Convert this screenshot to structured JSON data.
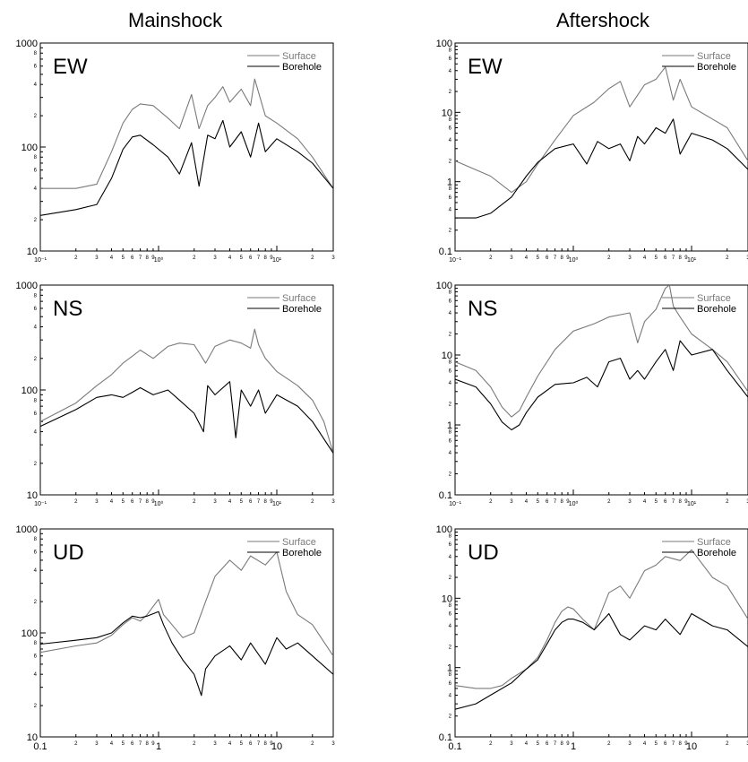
{
  "columns": [
    {
      "title": "Mainshock"
    },
    {
      "title": "Aftershock"
    }
  ],
  "colors": {
    "surface": "#7a7a7a",
    "borehole": "#000000"
  },
  "legend": {
    "surface": "Surface",
    "borehole": "Borehole"
  },
  "chart_data": [
    {
      "type": "line",
      "column": "Mainshock",
      "component": "EW",
      "xscale": "log",
      "yscale": "log",
      "xlim": [
        0.1,
        30
      ],
      "ylim": [
        10,
        1000
      ],
      "grid": false,
      "legend_position": "top-right",
      "x_ticklabels": [
        "10⁻¹",
        "10⁰",
        "10¹"
      ],
      "y_ticklabels": [
        "1000",
        "100",
        "10"
      ],
      "series": [
        {
          "name": "Surface",
          "x": [
            0.1,
            0.2,
            0.3,
            0.4,
            0.5,
            0.6,
            0.7,
            0.9,
            1.2,
            1.5,
            1.9,
            2.2,
            2.6,
            3.0,
            3.5,
            4.0,
            5.0,
            6.0,
            6.5,
            8.0,
            10,
            15,
            20,
            30
          ],
          "y": [
            40,
            40,
            44,
            90,
            170,
            230,
            260,
            250,
            190,
            150,
            320,
            150,
            250,
            300,
            380,
            270,
            360,
            250,
            450,
            200,
            170,
            120,
            80,
            40
          ]
        },
        {
          "name": "Borehole",
          "x": [
            0.1,
            0.2,
            0.3,
            0.4,
            0.5,
            0.6,
            0.7,
            0.9,
            1.2,
            1.5,
            1.9,
            2.2,
            2.6,
            3.0,
            3.5,
            4.0,
            5.0,
            6.0,
            7.0,
            8.0,
            10,
            15,
            20,
            30
          ],
          "y": [
            22,
            25,
            28,
            50,
            95,
            125,
            130,
            105,
            80,
            55,
            110,
            42,
            130,
            120,
            180,
            100,
            140,
            80,
            170,
            90,
            120,
            90,
            70,
            40
          ]
        }
      ]
    },
    {
      "type": "line",
      "column": "Aftershock",
      "component": "EW",
      "xscale": "log",
      "yscale": "log",
      "xlim": [
        0.1,
        30
      ],
      "ylim": [
        0.1,
        100
      ],
      "grid": false,
      "legend_position": "top-right",
      "x_ticklabels": [
        "10⁻¹",
        "10⁰",
        "10¹"
      ],
      "y_ticklabels": [
        "100",
        "10",
        "1",
        "0.1"
      ],
      "series": [
        {
          "name": "Surface",
          "x": [
            0.1,
            0.2,
            0.3,
            0.4,
            0.5,
            0.7,
            1.0,
            1.5,
            2.0,
            2.5,
            3.0,
            4.0,
            5.0,
            6.0,
            7.0,
            8.0,
            10,
            15,
            20,
            30
          ],
          "y": [
            2.0,
            1.2,
            0.7,
            1.0,
            1.8,
            4.0,
            9.0,
            14,
            22,
            28,
            12,
            25,
            30,
            45,
            15,
            30,
            12,
            8,
            6,
            2
          ]
        },
        {
          "name": "Borehole",
          "x": [
            0.1,
            0.15,
            0.2,
            0.3,
            0.4,
            0.5,
            0.7,
            1.0,
            1.3,
            1.6,
            2.0,
            2.5,
            3.0,
            3.5,
            4.0,
            5.0,
            6.0,
            7.0,
            8.0,
            10,
            15,
            20,
            30
          ],
          "y": [
            0.3,
            0.3,
            0.35,
            0.6,
            1.2,
            1.9,
            3.0,
            3.5,
            1.8,
            3.8,
            3.0,
            3.5,
            2.0,
            4.5,
            3.5,
            6.0,
            5.0,
            8.0,
            2.5,
            5.0,
            4.0,
            3.0,
            1.5
          ]
        }
      ]
    },
    {
      "type": "line",
      "column": "Mainshock",
      "component": "NS",
      "xscale": "log",
      "yscale": "log",
      "xlim": [
        0.1,
        30
      ],
      "ylim": [
        10,
        1000
      ],
      "grid": false,
      "legend_position": "top-right",
      "x_ticklabels": [
        "10⁻¹",
        "10⁰",
        "10¹"
      ],
      "y_ticklabels": [
        "1000",
        "100",
        "10"
      ],
      "series": [
        {
          "name": "Surface",
          "x": [
            0.1,
            0.2,
            0.3,
            0.4,
            0.5,
            0.6,
            0.7,
            0.9,
            1.2,
            1.5,
            2.0,
            2.5,
            3.0,
            4.0,
            5.0,
            6.0,
            6.5,
            7.0,
            8.0,
            10,
            15,
            20,
            25,
            30
          ],
          "y": [
            50,
            75,
            110,
            140,
            180,
            210,
            240,
            200,
            260,
            280,
            270,
            180,
            260,
            300,
            280,
            250,
            380,
            270,
            200,
            150,
            110,
            80,
            50,
            25
          ]
        },
        {
          "name": "Borehole",
          "x": [
            0.1,
            0.2,
            0.3,
            0.4,
            0.5,
            0.6,
            0.7,
            0.9,
            1.2,
            1.5,
            2.0,
            2.4,
            2.6,
            3.0,
            4.0,
            4.5,
            5.0,
            6.0,
            7.0,
            8.0,
            10,
            15,
            20,
            30
          ],
          "y": [
            45,
            65,
            85,
            90,
            85,
            95,
            105,
            90,
            100,
            80,
            60,
            40,
            110,
            90,
            120,
            35,
            100,
            70,
            100,
            60,
            90,
            70,
            50,
            25
          ]
        }
      ]
    },
    {
      "type": "line",
      "column": "Aftershock",
      "component": "NS",
      "xscale": "log",
      "yscale": "log",
      "xlim": [
        0.1,
        30
      ],
      "ylim": [
        0.1,
        100
      ],
      "grid": false,
      "legend_position": "top-right",
      "x_ticklabels": [
        "10⁻¹",
        "10⁰",
        "10¹"
      ],
      "y_ticklabels": [
        "100",
        "10",
        "1",
        "0.1"
      ],
      "series": [
        {
          "name": "Surface",
          "x": [
            0.1,
            0.15,
            0.2,
            0.25,
            0.3,
            0.35,
            0.4,
            0.5,
            0.7,
            1.0,
            1.5,
            2.0,
            3.0,
            3.5,
            4.0,
            5.0,
            6.0,
            6.5,
            7.0,
            8.0,
            10,
            15,
            20,
            30
          ],
          "y": [
            8,
            6,
            3.5,
            1.8,
            1.3,
            1.6,
            2.5,
            5,
            12,
            22,
            28,
            35,
            40,
            15,
            30,
            45,
            90,
            100,
            50,
            35,
            20,
            12,
            8,
            3
          ]
        },
        {
          "name": "Borehole",
          "x": [
            0.1,
            0.15,
            0.2,
            0.25,
            0.3,
            0.35,
            0.4,
            0.5,
            0.7,
            1.0,
            1.3,
            1.6,
            2.0,
            2.5,
            3.0,
            3.5,
            4.0,
            5.0,
            6.0,
            7.0,
            8.0,
            10,
            15,
            20,
            30
          ],
          "y": [
            4.5,
            3.5,
            2.0,
            1.1,
            0.85,
            1.0,
            1.5,
            2.5,
            3.8,
            4.0,
            4.8,
            3.5,
            8,
            9,
            4.5,
            6,
            4.5,
            8,
            12,
            6,
            16,
            10,
            12,
            6,
            2.5
          ]
        }
      ]
    },
    {
      "type": "line",
      "column": "Mainshock",
      "component": "UD",
      "xscale": "log",
      "yscale": "log",
      "xlim": [
        0.1,
        30
      ],
      "ylim": [
        10,
        1000
      ],
      "grid": false,
      "legend_position": "top-right",
      "x_ticklabels": [
        "0.1",
        "1",
        "10"
      ],
      "y_ticklabels": [
        "1000",
        "100",
        "10"
      ],
      "series": [
        {
          "name": "Surface",
          "x": [
            0.1,
            0.2,
            0.3,
            0.4,
            0.5,
            0.6,
            0.7,
            0.8,
            0.9,
            1.0,
            1.1,
            1.3,
            1.6,
            2.0,
            2.5,
            3.0,
            4.0,
            5.0,
            6.0,
            8.0,
            10,
            12,
            15,
            20,
            30
          ],
          "y": [
            65,
            75,
            80,
            95,
            120,
            140,
            130,
            150,
            180,
            210,
            150,
            120,
            90,
            100,
            200,
            350,
            500,
            400,
            550,
            450,
            600,
            250,
            150,
            120,
            60
          ]
        },
        {
          "name": "Borehole",
          "x": [
            0.1,
            0.2,
            0.3,
            0.4,
            0.5,
            0.6,
            0.7,
            0.8,
            1.0,
            1.1,
            1.3,
            1.6,
            2.0,
            2.3,
            2.5,
            3.0,
            4.0,
            5.0,
            6.0,
            8.0,
            10,
            12,
            15,
            20,
            30
          ],
          "y": [
            78,
            85,
            90,
            100,
            125,
            145,
            140,
            145,
            160,
            120,
            80,
            55,
            40,
            25,
            45,
            60,
            75,
            55,
            80,
            50,
            90,
            70,
            80,
            60,
            40
          ]
        }
      ]
    },
    {
      "type": "line",
      "column": "Aftershock",
      "component": "UD",
      "xscale": "log",
      "yscale": "log",
      "xlim": [
        0.1,
        30
      ],
      "ylim": [
        0.1,
        100
      ],
      "grid": false,
      "legend_position": "top-right",
      "x_ticklabels": [
        "0.1",
        "1",
        "10"
      ],
      "y_ticklabels": [
        "100",
        "10",
        "1",
        "0.1"
      ],
      "series": [
        {
          "name": "Surface",
          "x": [
            0.1,
            0.15,
            0.2,
            0.25,
            0.3,
            0.4,
            0.5,
            0.6,
            0.7,
            0.8,
            0.9,
            1.0,
            1.2,
            1.5,
            2.0,
            2.5,
            3.0,
            4.0,
            5.0,
            6.0,
            8.0,
            10,
            15,
            20,
            30
          ],
          "y": [
            0.55,
            0.5,
            0.5,
            0.55,
            0.7,
            0.95,
            1.4,
            2.5,
            4.5,
            6.5,
            7.5,
            7,
            5,
            3.5,
            12,
            15,
            10,
            25,
            30,
            40,
            35,
            50,
            20,
            15,
            5
          ]
        },
        {
          "name": "Borehole",
          "x": [
            0.1,
            0.15,
            0.2,
            0.3,
            0.4,
            0.5,
            0.6,
            0.7,
            0.8,
            0.9,
            1.0,
            1.2,
            1.5,
            2.0,
            2.5,
            3.0,
            4.0,
            5.0,
            6.0,
            8.0,
            10,
            15,
            20,
            30
          ],
          "y": [
            0.25,
            0.3,
            0.4,
            0.6,
            0.95,
            1.3,
            2.2,
            3.5,
            4.5,
            5.0,
            5.0,
            4.5,
            3.5,
            6.0,
            3.0,
            2.5,
            4.0,
            3.5,
            5.0,
            3.0,
            6.0,
            4.0,
            3.5,
            2.0
          ]
        }
      ]
    }
  ]
}
